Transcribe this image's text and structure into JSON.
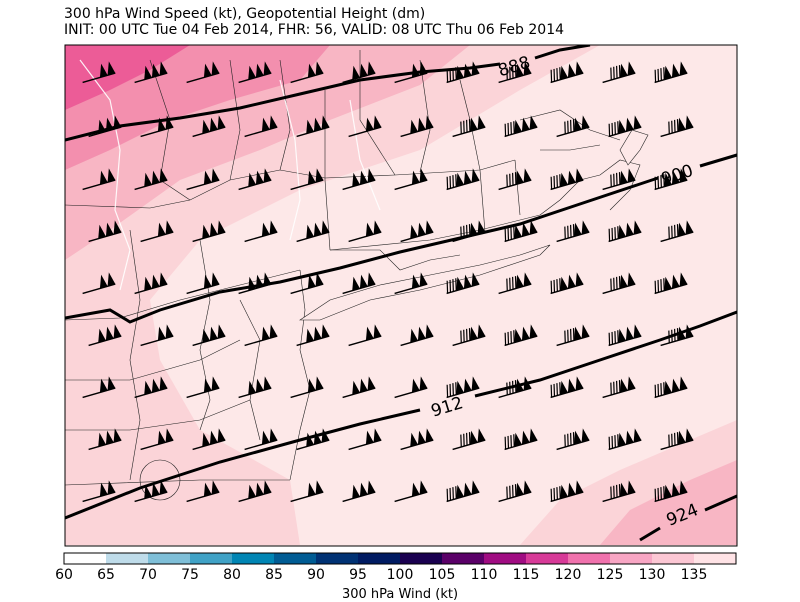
{
  "title": {
    "line1": "300 hPa Wind Speed (kt), Geopotential Height (dm)",
    "line2": "INIT: 00 UTC Tue 04 Feb 2014, FHR: 56, VALID: 08 UTC Thu 06 Feb 2014"
  },
  "contours": {
    "labels": [
      "888",
      "900",
      "912",
      "924"
    ]
  },
  "colorbar": {
    "title": "300 hPa Wind (kt)",
    "ticks": [
      "60",
      "65",
      "70",
      "75",
      "80",
      "85",
      "90",
      "95",
      "100",
      "105",
      "110",
      "115",
      "120",
      "125",
      "130",
      "135"
    ],
    "colors": [
      "#ffffff",
      "#bfdcea",
      "#7fbfd8",
      "#40a2c6",
      "#0085b4",
      "#005c94",
      "#003274",
      "#001b62",
      "#1a0050",
      "#5a0068",
      "#a00c82",
      "#d73a98",
      "#f072ad",
      "#f8a6c4",
      "#fcc7d4",
      "#ffe3e6"
    ]
  },
  "map": {
    "background_color": "#fde8e8",
    "shades": [
      "#fbd4d8",
      "#f8b6c4",
      "#f38fae",
      "#ec5c97"
    ]
  }
}
